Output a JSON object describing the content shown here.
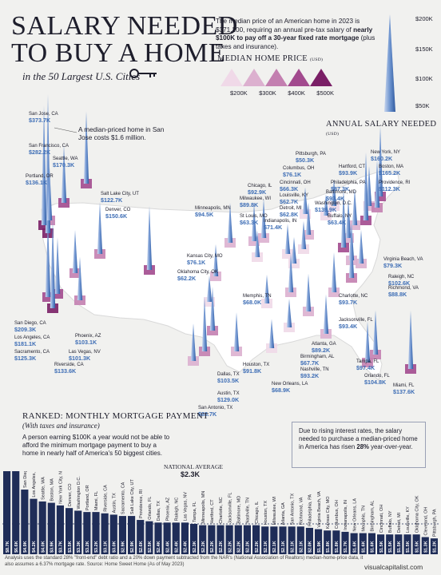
{
  "title_line1": "SALARY NEEDED",
  "title_line2": "TO BUY A HOME",
  "subtitle": "in the 50 Largest U.S. Cities",
  "intro": {
    "part1": "The median price of an American home in 2023 is $371,200, requiring an annual pre-tax salary of ",
    "bold": "nearly $100K to pay off a 30-year fixed rate mortgage",
    "part2": " (plus taxes and insurance)."
  },
  "median_legend": {
    "title": "MEDIAN HOME PRICE",
    "unit": "(USD)",
    "ticks": [
      "$200K",
      "$300K",
      "$400K",
      "$500K"
    ],
    "colors": [
      "#f0d9e8",
      "#dcb0cf",
      "#c37fb0",
      "#a24a8e",
      "#7a1f66"
    ]
  },
  "salary_legend": {
    "title": "ANNUAL SALARY NEEDED",
    "unit": "(USD)",
    "ticks": [
      "$200K",
      "$150K",
      "$100K",
      "$50K"
    ]
  },
  "san_jose_note": "A median-priced home in San Jose costs $1.6 million.",
  "chart_data": [
    {
      "type": "map",
      "title": "Salary Needed to Buy a Home",
      "series": [
        {
          "name": "Annual Salary Needed",
          "unit": "USD"
        }
      ],
      "cities": [
        {
          "city": "San Jose, CA",
          "salary": "$373.7K",
          "value": 373.7
        },
        {
          "city": "San Francisco, CA",
          "salary": "$282.2K",
          "value": 282.2
        },
        {
          "city": "Seattle, WA",
          "salary": "$170.3K",
          "value": 170.3
        },
        {
          "city": "Portland, OR",
          "salary": "$136.1K",
          "value": 136.1
        },
        {
          "city": "Salt Lake City, UT",
          "salary": "$122.7K",
          "value": 122.7
        },
        {
          "city": "Denver, CO",
          "salary": "$150.6K",
          "value": 150.6
        },
        {
          "city": "Minneapolis, MN",
          "salary": "$94.5K",
          "value": 94.5
        },
        {
          "city": "Milwaukee, WI",
          "salary": "$89.8K",
          "value": 89.8
        },
        {
          "city": "Chicago, IL",
          "salary": "$92.9K",
          "value": 92.9
        },
        {
          "city": "St Louis, MO",
          "salary": "$63.3K",
          "value": 63.3
        },
        {
          "city": "Kansas City, MO",
          "salary": "$76.1K",
          "value": 76.1
        },
        {
          "city": "Oklahoma City, OK",
          "salary": "$62.2K",
          "value": 62.2
        },
        {
          "city": "Memphis, TN",
          "salary": "$68.0K",
          "value": 68.0
        },
        {
          "city": "Pittsburgh, PA",
          "salary": "$50.3K",
          "value": 50.3
        },
        {
          "city": "Columbus, OH",
          "salary": "$76.1K",
          "value": 76.1
        },
        {
          "city": "Cincinnati, OH",
          "salary": "$66.3K",
          "value": 66.3
        },
        {
          "city": "Louisville, KY",
          "salary": "$62.7K",
          "value": 62.7
        },
        {
          "city": "Detroit, MI",
          "salary": "$62.8K",
          "value": 62.8
        },
        {
          "city": "Indianapolis, IN",
          "salary": "$71.4K",
          "value": 71.4
        },
        {
          "city": "Hartford, CT",
          "salary": "$93.9K",
          "value": 93.9
        },
        {
          "city": "New York, NY",
          "salary": "$160.2K",
          "value": 160.2
        },
        {
          "city": "Boston, MA",
          "salary": "$165.2K",
          "value": 165.2
        },
        {
          "city": "Philadelphia, PA",
          "salary": "$87.3K",
          "value": 87.3
        },
        {
          "city": "Providence, RI",
          "salary": "$112.3K",
          "value": 112.3
        },
        {
          "city": "Baltimore, MD",
          "salary": "$93.4K",
          "value": 93.4
        },
        {
          "city": "Washington, D.C.",
          "salary": "$139.9K",
          "value": 139.9
        },
        {
          "city": "Buffalo, NY",
          "salary": "$63.4K",
          "value": 63.4
        },
        {
          "city": "Virginia Beach, VA",
          "salary": "$79.3K",
          "value": 79.3
        },
        {
          "city": "Raleigh, NC",
          "salary": "$102.6K",
          "value": 102.6
        },
        {
          "city": "Richmond, VA",
          "salary": "$88.8K",
          "value": 88.8
        },
        {
          "city": "Charlotte, NC",
          "salary": "$93.7K",
          "value": 93.7
        },
        {
          "city": "Jacksonville, FL",
          "salary": "$93.4K",
          "value": 93.4
        },
        {
          "city": "Atlanta, GA",
          "salary": "$89.2K",
          "value": 89.2
        },
        {
          "city": "Birmingham, AL",
          "salary": "$67.7K",
          "value": 67.7
        },
        {
          "city": "Nashville, TN",
          "salary": "$93.2K",
          "value": 93.2
        },
        {
          "city": "New Orleans, LA",
          "salary": "$68.9K",
          "value": 68.9
        },
        {
          "city": "Tampa, FL",
          "salary": "$97.4K",
          "value": 97.4
        },
        {
          "city": "Orlando, FL",
          "salary": "$104.8K",
          "value": 104.8
        },
        {
          "city": "Miami, FL",
          "salary": "$137.6K",
          "value": 137.6
        },
        {
          "city": "Houston, TX",
          "salary": "$91.8K",
          "value": 91.8
        },
        {
          "city": "Dallas, TX",
          "salary": "$103.5K",
          "value": 103.5
        },
        {
          "city": "Austin, TX",
          "salary": "$129.0K",
          "value": 129.0
        },
        {
          "city": "San Antonio, TX",
          "salary": "$88.7K",
          "value": 88.7
        },
        {
          "city": "Phoenix, AZ",
          "salary": "$103.1K",
          "value": 103.1
        },
        {
          "city": "Las Vegas, NV",
          "salary": "$101.3K",
          "value": 101.3
        },
        {
          "city": "Riverside, CA",
          "salary": "$133.6K",
          "value": 133.6
        },
        {
          "city": "San Diego, CA",
          "salary": "$209.3K",
          "value": 209.3
        },
        {
          "city": "Los Angeles, CA",
          "salary": "$181.1K",
          "value": 181.1
        },
        {
          "city": "Sacramento, CA",
          "salary": "$125.3K",
          "value": 125.3
        }
      ]
    },
    {
      "type": "bar",
      "title": "RANKED: MONTHLY MORTGAGE PAYMENT",
      "subtitle": "(With taxes and insurance)",
      "national_average_label": "NATIONAL AVERAGE",
      "national_average": "$2.3K",
      "national_average_value": 2.3,
      "ylim": [
        0,
        10
      ],
      "categories": [
        "San Jose, CA",
        "San Francisco, CA",
        "San Diego, CA",
        "Los Angeles, CA",
        "Seattle, WA",
        "Boston, MA",
        "New York City, NY",
        "Denver, CO",
        "Washington D.C.",
        "Portland, OR",
        "Miami, FL",
        "Riverside, CA",
        "Austin, TX",
        "Sacramento, CA",
        "Salt Lake City, UT",
        "Providence, RI",
        "Orlando, FL",
        "Dallas, TX",
        "Phoenix, AZ",
        "Raleigh, NC",
        "Las Vegas, NV",
        "Tampa, FL",
        "Minneapolis, MN",
        "Hartford, CT",
        "Charlotte, NC",
        "Jacksonville, FL",
        "Baltimore, MD",
        "Nashville, TN",
        "Chicago, IL",
        "Houston, TX",
        "Milwaukee, WI",
        "Atlanta, GA",
        "San Antonio, TX",
        "Richmond, VA",
        "Philadelphia, PA",
        "Virginia Beach, VA",
        "Kansas City, MO",
        "Columbus, OH",
        "Indianapolis, IN",
        "New Orleans, LA",
        "Memphis, TN",
        "Birmingham, AL",
        "Cincinnati, OH",
        "Buffalo, NY",
        "Detroit, MI",
        "Louisville, KY",
        "Oklahoma City, OK",
        "Cleveland, OH",
        "Pittsburgh, PA"
      ],
      "labels": [
        "$8.7K",
        "$6.6K",
        "$4.9K",
        "$4.2K",
        "$4.0K",
        "$3.9K",
        "$3.7K",
        "$3.5K",
        "$3.3K",
        "$3.2K",
        "$3.2K",
        "$3.1K",
        "$3.0K",
        "$2.9K",
        "$2.9K",
        "$2.6K",
        "$2.5K",
        "$2.4K",
        "$2.4K",
        "$2.4K",
        "$2.4K",
        "$2.3K",
        "$2.2K",
        "$2.2K",
        "$2.2K",
        "$2.2K",
        "$2.2K",
        "$2.2K",
        "$2.2K",
        "$2.1K",
        "$2.1K",
        "$2.1K",
        "$2.1K",
        "$2.1K",
        "$2.0K",
        "$1.9K",
        "$1.8K",
        "$1.8K",
        "$1.7K",
        "$1.6K",
        "$1.6K",
        "$1.6K",
        "$1.5K",
        "$1.5K",
        "$1.5K",
        "$1.5K",
        "$1.5K",
        "$1.3K",
        "$1.2K"
      ],
      "values": [
        8.7,
        6.6,
        4.9,
        4.2,
        4.0,
        3.9,
        3.7,
        3.5,
        3.3,
        3.2,
        3.2,
        3.1,
        3.0,
        2.9,
        2.9,
        2.6,
        2.5,
        2.4,
        2.4,
        2.4,
        2.4,
        2.3,
        2.2,
        2.2,
        2.2,
        2.2,
        2.2,
        2.2,
        2.2,
        2.1,
        2.1,
        2.1,
        2.1,
        2.1,
        2.0,
        1.9,
        1.8,
        1.8,
        1.7,
        1.6,
        1.6,
        1.6,
        1.5,
        1.5,
        1.5,
        1.5,
        1.5,
        1.3,
        1.2
      ]
    }
  ],
  "ranked_text": "A person earning $100K a year would not be able to afford the minimum mortgage payment to buy a home in nearly half of America's 50 biggest cities.",
  "callout_box": {
    "part1": "Due to rising interest rates, the salary needed to purchase a median-priced home in America has risen ",
    "bold": "28%",
    "part2": " year-over-year."
  },
  "footer": "Analysis uses the standard 28% \"front-end\" debt ratio and a 20% down payment subtracted from the NAR's (National Association of Realtors) median-home-price data, it also assumes a 6.37% mortgage rate. Source: Home Sweet Home (As of May 2023)",
  "logo": "visualcapitalist.com",
  "colors": {
    "spike": "#5b86c8",
    "value_text": "#3d6db5",
    "map": "#ffffff",
    "bar": "#1f2d58",
    "accent": "#8a2c74"
  }
}
